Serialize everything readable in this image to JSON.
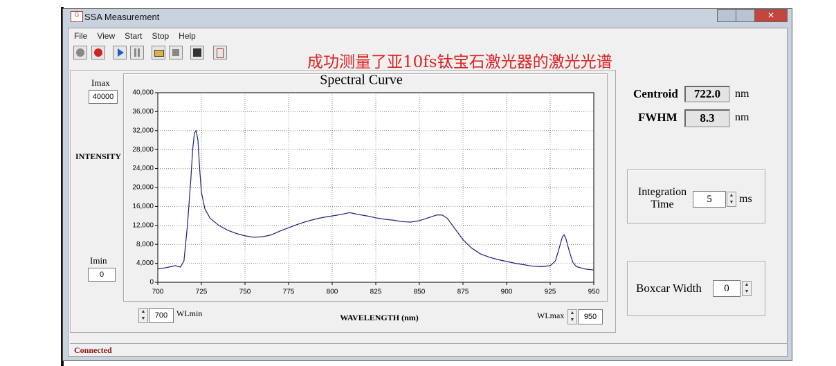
{
  "window": {
    "title": "SSA Measurement",
    "menu": [
      "File",
      "View",
      "Start",
      "Stop",
      "Help"
    ],
    "status": "Connected"
  },
  "annotation": "成功测量了亚10fs钛宝石激光器的激光光谱",
  "controls": {
    "imax": {
      "label": "Imax",
      "value": "40000"
    },
    "imin": {
      "label": "Imin",
      "value": "0"
    },
    "wlmin": {
      "label": "WLmin",
      "value": "700"
    },
    "wlmax": {
      "label": "WLmax",
      "value": "950"
    }
  },
  "results": {
    "centroid": {
      "label": "Centroid",
      "value": "722.0",
      "unit": "nm"
    },
    "fwhm": {
      "label": "FWHM",
      "value": "8.3",
      "unit": "nm"
    }
  },
  "settings": {
    "integration": {
      "label": "Integration Time",
      "value": "5",
      "unit": "ms"
    },
    "boxcar": {
      "label": "Boxcar Width",
      "value": "0"
    }
  },
  "chart_data": {
    "type": "line",
    "title": "Spectral Curve",
    "y_label": "INTENSITY",
    "x_label": "WAVELENGTH (nm)",
    "x": [
      700,
      705,
      710,
      713,
      715,
      717,
      719,
      720,
      721,
      722,
      723,
      724,
      725,
      727,
      730,
      735,
      740,
      745,
      750,
      755,
      760,
      765,
      770,
      775,
      780,
      785,
      790,
      795,
      800,
      805,
      810,
      815,
      820,
      825,
      830,
      835,
      840,
      845,
      850,
      855,
      860,
      863,
      866,
      870,
      875,
      880,
      885,
      890,
      895,
      900,
      905,
      910,
      915,
      920,
      925,
      928,
      930,
      932,
      933,
      934,
      936,
      938,
      940,
      945,
      950
    ],
    "values": [
      2800,
      3100,
      3500,
      3200,
      4500,
      12000,
      22000,
      28000,
      31500,
      32000,
      30000,
      24000,
      19000,
      15500,
      13500,
      12000,
      11000,
      10300,
      9800,
      9500,
      9600,
      10000,
      10800,
      11500,
      12200,
      12800,
      13300,
      13700,
      14000,
      14300,
      14700,
      14300,
      14000,
      13600,
      13300,
      13100,
      12800,
      12700,
      13000,
      13600,
      14200,
      14200,
      13500,
      11500,
      9000,
      7200,
      6000,
      5300,
      4800,
      4400,
      4000,
      3700,
      3400,
      3300,
      3500,
      4500,
      7000,
      9600,
      10000,
      9200,
      6500,
      4200,
      3300,
      2800,
      2600
    ],
    "color": "#1c1c7a",
    "xlim": [
      700,
      950
    ],
    "ylim": [
      0,
      40000
    ],
    "xticks": [
      700,
      725,
      750,
      775,
      800,
      825,
      850,
      875,
      900,
      925,
      950
    ],
    "yticks": [
      0,
      {
        "value": 4000,
        "label": "4,000"
      },
      {
        "value": 8000,
        "label": "8,000"
      },
      {
        "value": 12000,
        "label": "12,000"
      },
      {
        "value": 16000,
        "label": "16,000"
      },
      {
        "value": 20000,
        "label": "20,000"
      },
      {
        "value": 24000,
        "label": "24,000"
      },
      {
        "value": 28000,
        "label": "28,000"
      },
      {
        "value": 32000,
        "label": "32,000"
      },
      {
        "value": 36000,
        "label": "36,000"
      },
      {
        "value": 40000,
        "label": "40,000"
      }
    ],
    "grid": true
  }
}
